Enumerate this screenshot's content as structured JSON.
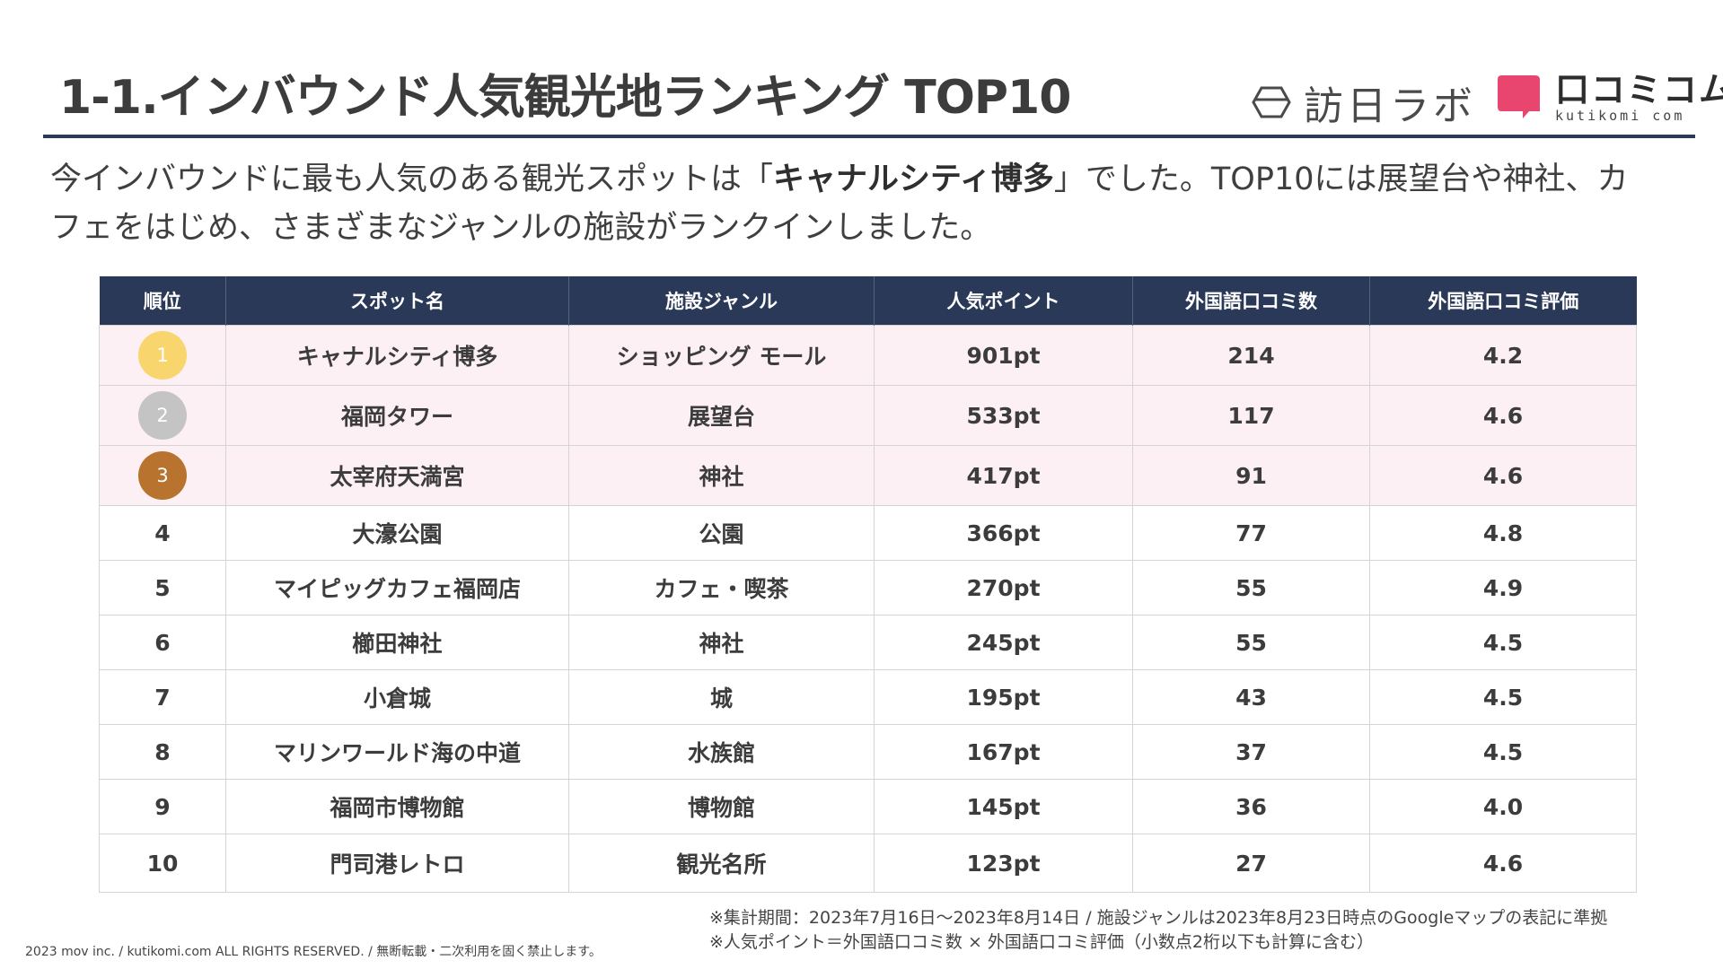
{
  "header": {
    "title": "1-1.インバウンド人気観光地ランキング TOP10",
    "logo_hounichi_text": "訪日ラボ",
    "logo_kuchikomi_text": "口コミコム",
    "logo_kuchikomi_sub": "kutikomi com"
  },
  "intro": {
    "part1": "今インバウンドに最も人気のある観光スポットは「",
    "highlight": "キャナルシティ博多",
    "part2": "」でした。TOP10には展望台や神社、カフェをはじめ、さまざまなジャンルの施設がランクインしました。"
  },
  "table": {
    "headers": [
      "順位",
      "スポット名",
      "施設ジャンル",
      "人気ポイント",
      "外国語口コミ数",
      "外国語口コミ評価"
    ],
    "rows": [
      {
        "rank": "1",
        "name": "キャナルシティ博多",
        "genre": "ショッピング モール",
        "points": "901pt",
        "reviews": "214",
        "rating": "4.2"
      },
      {
        "rank": "2",
        "name": "福岡タワー",
        "genre": "展望台",
        "points": "533pt",
        "reviews": "117",
        "rating": "4.6"
      },
      {
        "rank": "3",
        "name": "太宰府天満宮",
        "genre": "神社",
        "points": "417pt",
        "reviews": "91",
        "rating": "4.6"
      },
      {
        "rank": "4",
        "name": "大濠公園",
        "genre": "公園",
        "points": "366pt",
        "reviews": "77",
        "rating": "4.8"
      },
      {
        "rank": "5",
        "name": "マイピッグカフェ福岡店",
        "genre": "カフェ・喫茶",
        "points": "270pt",
        "reviews": "55",
        "rating": "4.9"
      },
      {
        "rank": "6",
        "name": "櫛田神社",
        "genre": "神社",
        "points": "245pt",
        "reviews": "55",
        "rating": "4.5"
      },
      {
        "rank": "7",
        "name": "小倉城",
        "genre": "城",
        "points": "195pt",
        "reviews": "43",
        "rating": "4.5"
      },
      {
        "rank": "8",
        "name": "マリンワールド海の中道",
        "genre": "水族館",
        "points": "167pt",
        "reviews": "37",
        "rating": "4.5"
      },
      {
        "rank": "9",
        "name": "福岡市博物館",
        "genre": "博物館",
        "points": "145pt",
        "reviews": "36",
        "rating": "4.0"
      },
      {
        "rank": "10",
        "name": "門司港レトロ",
        "genre": "観光名所",
        "points": "123pt",
        "reviews": "27",
        "rating": "4.6"
      }
    ]
  },
  "notes": {
    "line1": "※集計期間：2023年7月16日〜2023年8月14日 / 施設ジャンルは2023年8月23日時点のGoogleマップの表記に準拠",
    "line2": "※人気ポイント＝外国語口コミ数 × 外国語口コミ評価（小数点2桁以下も計算に含む）"
  },
  "footer": "2023 mov inc. / kutikomi.com ALL RIGHTS RESERVED. / 無断転載・二次利用を固く禁止します。",
  "colors": {
    "navy": "#2a3957",
    "gold": "#f8d66d",
    "silver": "#c4c4c4",
    "bronze": "#b8732f",
    "top3_bg": "#fcf0f4",
    "logo_pink": "#e8466f"
  }
}
